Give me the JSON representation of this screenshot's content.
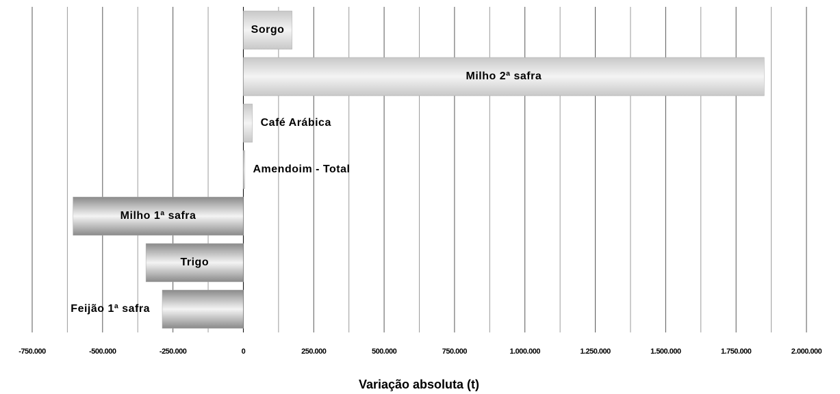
{
  "chart_data": {
    "type": "bar",
    "orientation": "horizontal",
    "x_label": "Variação absoluta (t)",
    "categories": [
      "Sorgo",
      "Milho 2ª safra",
      "Café Arábica",
      "Amendoim - Total",
      "Milho 1ª safra",
      "Trigo",
      "Feijão 1ª safra"
    ],
    "values": [
      173000,
      1850000,
      32000,
      5000,
      -605000,
      -346000,
      -288000
    ],
    "colors": [
      "#c8c8c8",
      "#c8c8c8",
      "#c8c8c8",
      "#c8c8c8",
      "#8a8a8a",
      "#8a8a8a",
      "#8a8a8a"
    ],
    "xlim": [
      -750000,
      2000000
    ],
    "xticks": [
      {
        "value": -750000,
        "label": "-750.000"
      },
      {
        "value": -500000,
        "label": "-500.000"
      },
      {
        "value": -250000,
        "label": "-250.000"
      },
      0,
      {
        "value": 250000,
        "label": "250.000"
      },
      {
        "value": 500000,
        "label": "500.000"
      },
      {
        "value": 750000,
        "label": "750.000"
      },
      {
        "value": 1000000,
        "label": "1.000.000"
      },
      {
        "value": 1250000,
        "label": "1.250.000"
      },
      {
        "value": 1500000,
        "label": "1.500.000"
      },
      {
        "value": 1750000,
        "label": "1.750.000"
      },
      {
        "value": 2000000,
        "label": "2.000.000"
      }
    ],
    "xminorticks": [
      -625000,
      -375000,
      -125000,
      125000,
      375000,
      625000,
      875000,
      1125000,
      1375000,
      1625000,
      1875000
    ],
    "grid": true
  }
}
